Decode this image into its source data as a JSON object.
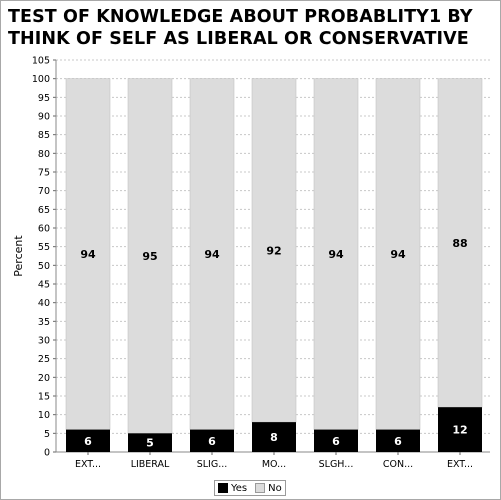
{
  "title_lines": [
    "TEST OF KNOWLEDGE ABOUT PROBABLITY1 BY",
    "THINK OF SELF AS LIBERAL OR CONSERVATIVE"
  ],
  "colors": {
    "yes": "#000000",
    "no": "#dcdcdc",
    "grid": "#c8c8c8"
  },
  "chart_data": {
    "type": "bar",
    "stacked": true,
    "title": "TEST OF KNOWLEDGE ABOUT PROBABLITY1 BY THINK OF SELF AS LIBERAL OR CONSERVATIVE",
    "ylabel": "Percent",
    "xlabel": "",
    "ylim": [
      0,
      105
    ],
    "yticks": [
      0,
      5,
      10,
      15,
      20,
      25,
      30,
      35,
      40,
      45,
      50,
      55,
      60,
      65,
      70,
      75,
      80,
      85,
      90,
      95,
      100,
      105
    ],
    "categories": [
      "EXT...",
      "LIBERAL",
      "SLIG...",
      "MO...",
      "SLGH...",
      "CON...",
      "EXT..."
    ],
    "series": [
      {
        "name": "Yes",
        "values": [
          6,
          5,
          6,
          8,
          6,
          6,
          12
        ]
      },
      {
        "name": "No",
        "values": [
          94,
          95,
          94,
          92,
          94,
          94,
          88
        ]
      }
    ],
    "grid": true,
    "legend_position": "bottom"
  }
}
